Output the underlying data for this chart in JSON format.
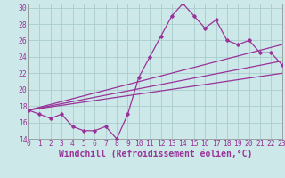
{
  "main_x": [
    0,
    1,
    2,
    3,
    4,
    5,
    6,
    7,
    8,
    9,
    10,
    11,
    12,
    13,
    14,
    15,
    16,
    17,
    18,
    19,
    20,
    21,
    22,
    23
  ],
  "main_y": [
    17.5,
    17.0,
    16.5,
    17.0,
    15.5,
    15.0,
    15.0,
    15.5,
    14.0,
    17.0,
    21.5,
    24.0,
    26.5,
    29.0,
    30.5,
    29.0,
    27.5,
    28.5,
    26.0,
    25.5,
    26.0,
    24.5,
    24.5,
    23.0
  ],
  "trend1_x": [
    0,
    23
  ],
  "trend1_y": [
    17.5,
    25.5
  ],
  "trend2_x": [
    0,
    23
  ],
  "trend2_y": [
    17.5,
    23.5
  ],
  "trend3_x": [
    0,
    23
  ],
  "trend3_y": [
    17.5,
    22.0
  ],
  "color": "#993399",
  "bg_color": "#cce8e8",
  "grid_color": "#aacccc",
  "xlim": [
    0,
    23
  ],
  "ylim": [
    14,
    30.5
  ],
  "yticks": [
    14,
    16,
    18,
    20,
    22,
    24,
    26,
    28,
    30
  ],
  "xticks": [
    0,
    1,
    2,
    3,
    4,
    5,
    6,
    7,
    8,
    9,
    10,
    11,
    12,
    13,
    14,
    15,
    16,
    17,
    18,
    19,
    20,
    21,
    22,
    23
  ],
  "xlabel": "Windchill (Refroidissement éolien,°C)",
  "fontsize_axis": 7,
  "fontsize_ticks": 5.8
}
